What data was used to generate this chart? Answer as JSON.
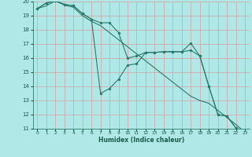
{
  "xlabel": "Humidex (Indice chaleur)",
  "background_color": "#b0e8e8",
  "grid_color": "#d4a0a0",
  "line_color": "#2a7a6a",
  "xlim": [
    -0.5,
    23.5
  ],
  "ylim": [
    11,
    20
  ],
  "yticks": [
    11,
    12,
    13,
    14,
    15,
    16,
    17,
    18,
    19,
    20
  ],
  "xticks": [
    0,
    1,
    2,
    3,
    4,
    5,
    6,
    7,
    8,
    9,
    10,
    11,
    12,
    13,
    14,
    15,
    16,
    17,
    18,
    19,
    20,
    21,
    22,
    23
  ],
  "series1_x": [
    0,
    1,
    2,
    3,
    4,
    5,
    6,
    7,
    8,
    9,
    10,
    11,
    12,
    13,
    14,
    15,
    16,
    17,
    18,
    19,
    20,
    21,
    22,
    23
  ],
  "series1_y": [
    19.5,
    19.9,
    20.05,
    19.8,
    19.7,
    19.15,
    18.75,
    18.5,
    18.5,
    17.8,
    16.0,
    16.15,
    16.4,
    16.4,
    16.45,
    16.45,
    16.45,
    16.55,
    16.15,
    14.0,
    12.0,
    11.9,
    11.05,
    10.75
  ],
  "series2_x": [
    0,
    1,
    2,
    3,
    4,
    5,
    6,
    7,
    8,
    9,
    10,
    11,
    12,
    13,
    14,
    15,
    16,
    17,
    18,
    19,
    20,
    21,
    22,
    23
  ],
  "series2_y": [
    19.5,
    19.9,
    20.05,
    19.8,
    19.7,
    19.15,
    18.75,
    13.5,
    13.85,
    14.5,
    15.5,
    15.6,
    16.4,
    16.4,
    16.45,
    16.45,
    16.45,
    17.05,
    16.15,
    14.0,
    12.0,
    11.9,
    11.05,
    10.75
  ],
  "series3_x": [
    0,
    1,
    2,
    3,
    4,
    5,
    6,
    7,
    8,
    9,
    10,
    11,
    12,
    13,
    14,
    15,
    16,
    17,
    18,
    19,
    20,
    21,
    22,
    23
  ],
  "series3_y": [
    19.5,
    19.7,
    20.05,
    19.75,
    19.6,
    19.0,
    18.6,
    18.3,
    17.8,
    17.3,
    16.8,
    16.3,
    15.8,
    15.3,
    14.8,
    14.3,
    13.8,
    13.3,
    13.0,
    12.8,
    12.3,
    11.8,
    11.3,
    10.75
  ]
}
